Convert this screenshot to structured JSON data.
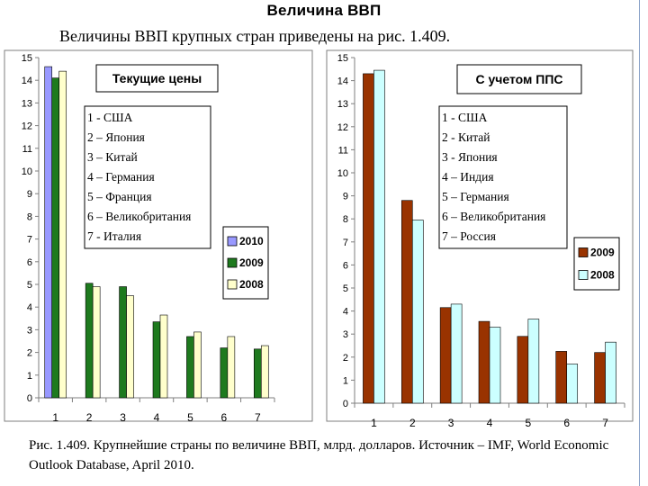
{
  "slide": {
    "title": "Величина ВВП",
    "intro": "Величины ВВП крупных стран приведены на рис. 1.409.",
    "caption": "Рис. 1.409. Крупнейшие страны по величине ВВП, млрд. долларов. Источник –  IMF, World Economic Outlook Database, April 2010."
  },
  "chart_data": [
    {
      "type": "bar",
      "title": "Текущие цены",
      "categories": [
        "1",
        "2",
        "3",
        "4",
        "5",
        "6",
        "7"
      ],
      "y_ticks": [
        "0",
        "1",
        "2",
        "3",
        "4",
        "5",
        "6",
        "7",
        "8",
        "9",
        "10",
        "11",
        "12",
        "13",
        "14",
        "15"
      ],
      "ylim": [
        0,
        15
      ],
      "grid": false,
      "legend_position": "right",
      "country_key": [
        "1 - США",
        "2 – Япония",
        "3 – Китай",
        "4 – Германия",
        "5 – Франция",
        "6 – Великобритания",
        "7 - Италия"
      ],
      "series": [
        {
          "name": "2010",
          "color": "#9999ff",
          "values": [
            14.6,
            null,
            null,
            null,
            null,
            null,
            null
          ]
        },
        {
          "name": "2009",
          "color": "#1e7a1e",
          "values": [
            14.1,
            5.05,
            4.9,
            3.35,
            2.7,
            2.2,
            2.15
          ]
        },
        {
          "name": "2008",
          "color": "#ffffcc",
          "values": [
            14.4,
            4.9,
            4.5,
            3.65,
            2.9,
            2.7,
            2.3
          ]
        }
      ]
    },
    {
      "type": "bar",
      "title": "С учетом ППС",
      "categories": [
        "1",
        "2",
        "3",
        "4",
        "5",
        "6",
        "7"
      ],
      "y_ticks": [
        "0",
        "1",
        "2",
        "3",
        "4",
        "5",
        "6",
        "7",
        "8",
        "9",
        "10",
        "11",
        "12",
        "13",
        "14",
        "15"
      ],
      "ylim": [
        0,
        15
      ],
      "grid": false,
      "legend_position": "right",
      "country_key": [
        "1 - США",
        "2 - Китай",
        "3 - Япония",
        "4 – Индия",
        "5 – Германия",
        "6 – Великобритания",
        "7 – Россия"
      ],
      "series": [
        {
          "name": "2009",
          "color": "#993300",
          "values": [
            14.3,
            8.8,
            4.15,
            3.55,
            2.9,
            2.25,
            2.2
          ]
        },
        {
          "name": "2008",
          "color": "#ccffff",
          "values": [
            14.45,
            7.95,
            4.3,
            3.3,
            3.65,
            1.7,
            2.65
          ]
        }
      ]
    }
  ]
}
